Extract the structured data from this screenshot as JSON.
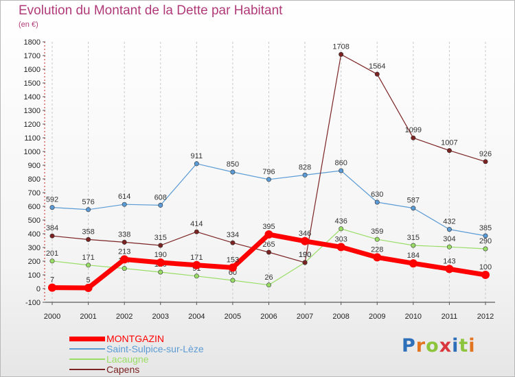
{
  "title": "Evolution du Montant de la Dette par Habitant",
  "unit_label": "(en €)",
  "logo": {
    "text": "Proxiti",
    "letter_colors": [
      "#2d6fb8",
      "#e2731f",
      "#8cc43c",
      "#d9363e",
      "#2d6fb8",
      "#8cc43c",
      "#e2731f"
    ]
  },
  "chart_data": {
    "type": "line",
    "x": [
      "2000",
      "2001",
      "2002",
      "2003",
      "2004",
      "2005",
      "2006",
      "2007",
      "2008",
      "2009",
      "2010",
      "2011",
      "2012"
    ],
    "ylim": [
      -100,
      1800
    ],
    "yticks": [
      -100,
      0,
      100,
      200,
      300,
      400,
      500,
      600,
      700,
      800,
      900,
      1000,
      1100,
      1200,
      1300,
      1400,
      1500,
      1600,
      1700,
      1800
    ],
    "grid": "vertical-dashed",
    "legend_position": "bottom-left",
    "series": [
      {
        "name": "MONTGAZIN",
        "color": "#ff0000",
        "values": [
          7,
          5,
          213,
          190,
          171,
          153,
          395,
          346,
          303,
          228,
          184,
          143,
          100
        ],
        "labels": [
          "7",
          "5",
          "213",
          "190",
          "171",
          "153",
          "395",
          "346",
          "303",
          "228",
          "184",
          "143",
          "100"
        ]
      },
      {
        "name": "Saint-Sulpice-sur-Lèze",
        "color": "#5b9bd5",
        "values": [
          592,
          576,
          614,
          608,
          911,
          850,
          796,
          828,
          860,
          630,
          587,
          432,
          385
        ],
        "labels": [
          "592",
          "576",
          "614",
          "608",
          "911",
          "850",
          "796",
          "828",
          "860",
          "630",
          "587",
          "432",
          "385"
        ]
      },
      {
        "name": "Lacaugne",
        "color": "#99dd66",
        "values": [
          201,
          171,
          147,
          120,
          91,
          60,
          26,
          190,
          436,
          359,
          315,
          304,
          290
        ],
        "labels": [
          "201",
          "171",
          "147",
          "120",
          "91",
          "60",
          "26",
          "190",
          "436",
          "359",
          "315",
          "304",
          "290"
        ]
      },
      {
        "name": "Capens",
        "color": "#7b2222",
        "values": [
          384,
          358,
          338,
          315,
          414,
          334,
          265,
          190,
          1708,
          1564,
          1099,
          1007,
          926
        ],
        "labels": [
          "384",
          "358",
          "338",
          "315",
          "414",
          "334",
          "265",
          "190",
          "1708",
          "1564",
          "1099",
          "1007",
          "926"
        ]
      }
    ]
  }
}
